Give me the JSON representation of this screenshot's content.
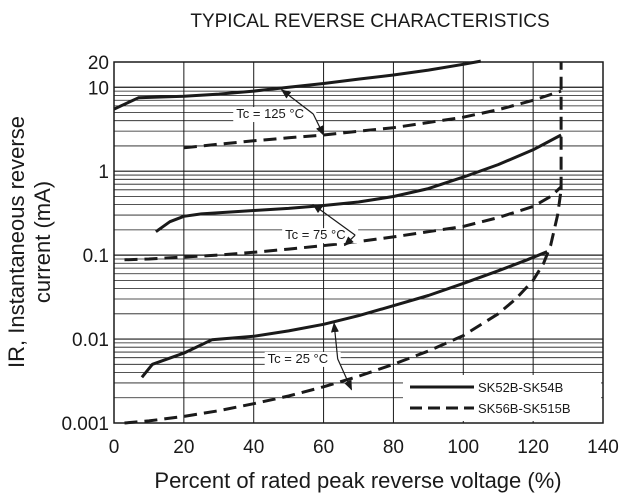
{
  "chart_data": {
    "type": "line",
    "title": "TYPICAL REVERSE CHARACTERISTICS",
    "xlabel": "Percent of rated peak reverse voltage (%)",
    "ylabel_line1": "IR, Instantaneous reverse",
    "ylabel_line2": "current (mA)",
    "xlim": [
      0,
      140
    ],
    "ylim": [
      0.001,
      20
    ],
    "yscale": "log",
    "grid": true,
    "legend_position": "bottom-right",
    "x_ticks": [
      0,
      20,
      40,
      60,
      80,
      100,
      120,
      140
    ],
    "x_tick_labels": [
      "0",
      "20",
      "40",
      "60",
      "80",
      "100",
      "120",
      "140"
    ],
    "y_ticks": [
      0.001,
      0.01,
      0.1,
      1,
      10,
      20
    ],
    "y_tick_labels": [
      "0.001",
      "0.01",
      "0.1",
      "1",
      "10",
      "20"
    ],
    "legend": [
      {
        "name": "SK52B-SK54B",
        "style": "solid"
      },
      {
        "name": "SK56B-SK515B",
        "style": "dashed"
      }
    ],
    "annotations": [
      {
        "text": "Tc = 125 °C",
        "x": 35,
        "y": 4.3,
        "arrows": [
          [
            48,
            9.3
          ],
          [
            60,
            2.7
          ]
        ]
      },
      {
        "text": "Tc = 75 °C",
        "x": 49,
        "y": 0.155,
        "arrows": [
          [
            57,
            0.4
          ],
          [
            66,
            0.13
          ]
        ]
      },
      {
        "text": "Tc = 25 °C",
        "x": 44,
        "y": 0.0052,
        "arrows": [
          [
            63,
            0.0155
          ],
          [
            68,
            0.0025
          ]
        ]
      }
    ],
    "series": [
      {
        "temperature": "125 °C",
        "style": "solid",
        "x": [
          0,
          7,
          20,
          30,
          40,
          50,
          60,
          70,
          80,
          90,
          100,
          105
        ],
        "y": [
          5.5,
          7.5,
          7.8,
          8.3,
          9.0,
          10.0,
          11.1,
          12.5,
          14.0,
          16.0,
          18.8,
          20.5
        ]
      },
      {
        "temperature": "125 °C",
        "style": "dashed",
        "x": [
          20,
          30,
          40,
          50,
          60,
          70,
          80,
          90,
          100,
          110,
          120,
          128
        ],
        "y": [
          1.9,
          2.1,
          2.3,
          2.5,
          2.7,
          3.0,
          3.3,
          3.8,
          4.4,
          5.4,
          7.0,
          9.0
        ]
      },
      {
        "temperature": "75 °C",
        "style": "solid",
        "x": [
          12,
          16,
          20,
          25,
          30,
          40,
          50,
          60,
          70,
          80,
          90,
          100,
          110,
          120,
          128
        ],
        "y": [
          0.19,
          0.25,
          0.29,
          0.31,
          0.32,
          0.34,
          0.36,
          0.39,
          0.43,
          0.5,
          0.62,
          0.85,
          1.2,
          1.8,
          2.7
        ]
      },
      {
        "temperature": "75 °C",
        "style": "dashed",
        "x": [
          3,
          10,
          20,
          30,
          40,
          50,
          60,
          70,
          80,
          90,
          100,
          110,
          120,
          125,
          128
        ],
        "y": [
          0.088,
          0.09,
          0.095,
          0.1,
          0.108,
          0.118,
          0.13,
          0.145,
          0.165,
          0.19,
          0.22,
          0.28,
          0.38,
          0.5,
          0.65
        ]
      },
      {
        "temperature": "25 °C",
        "style": "solid",
        "x": [
          8,
          11,
          20,
          28,
          40,
          50,
          60,
          70,
          80,
          90,
          100,
          110,
          118,
          124
        ],
        "y": [
          0.0035,
          0.005,
          0.0068,
          0.0098,
          0.0108,
          0.0125,
          0.015,
          0.019,
          0.025,
          0.033,
          0.046,
          0.065,
          0.087,
          0.11
        ]
      },
      {
        "temperature": "25 °C",
        "style": "dashed",
        "x": [
          3,
          10,
          20,
          30,
          40,
          50,
          60,
          70,
          80,
          90,
          100,
          110,
          115,
          120,
          123,
          125,
          127,
          128
        ],
        "y": [
          0.001,
          0.00106,
          0.0012,
          0.0014,
          0.0017,
          0.0021,
          0.0027,
          0.0036,
          0.005,
          0.0072,
          0.011,
          0.02,
          0.03,
          0.05,
          0.08,
          0.13,
          0.3,
          0.6
        ]
      },
      {
        "temperature": "",
        "style": "dashed",
        "x": [
          128,
          128
        ],
        "y": [
          0.6,
          20
        ]
      }
    ]
  }
}
